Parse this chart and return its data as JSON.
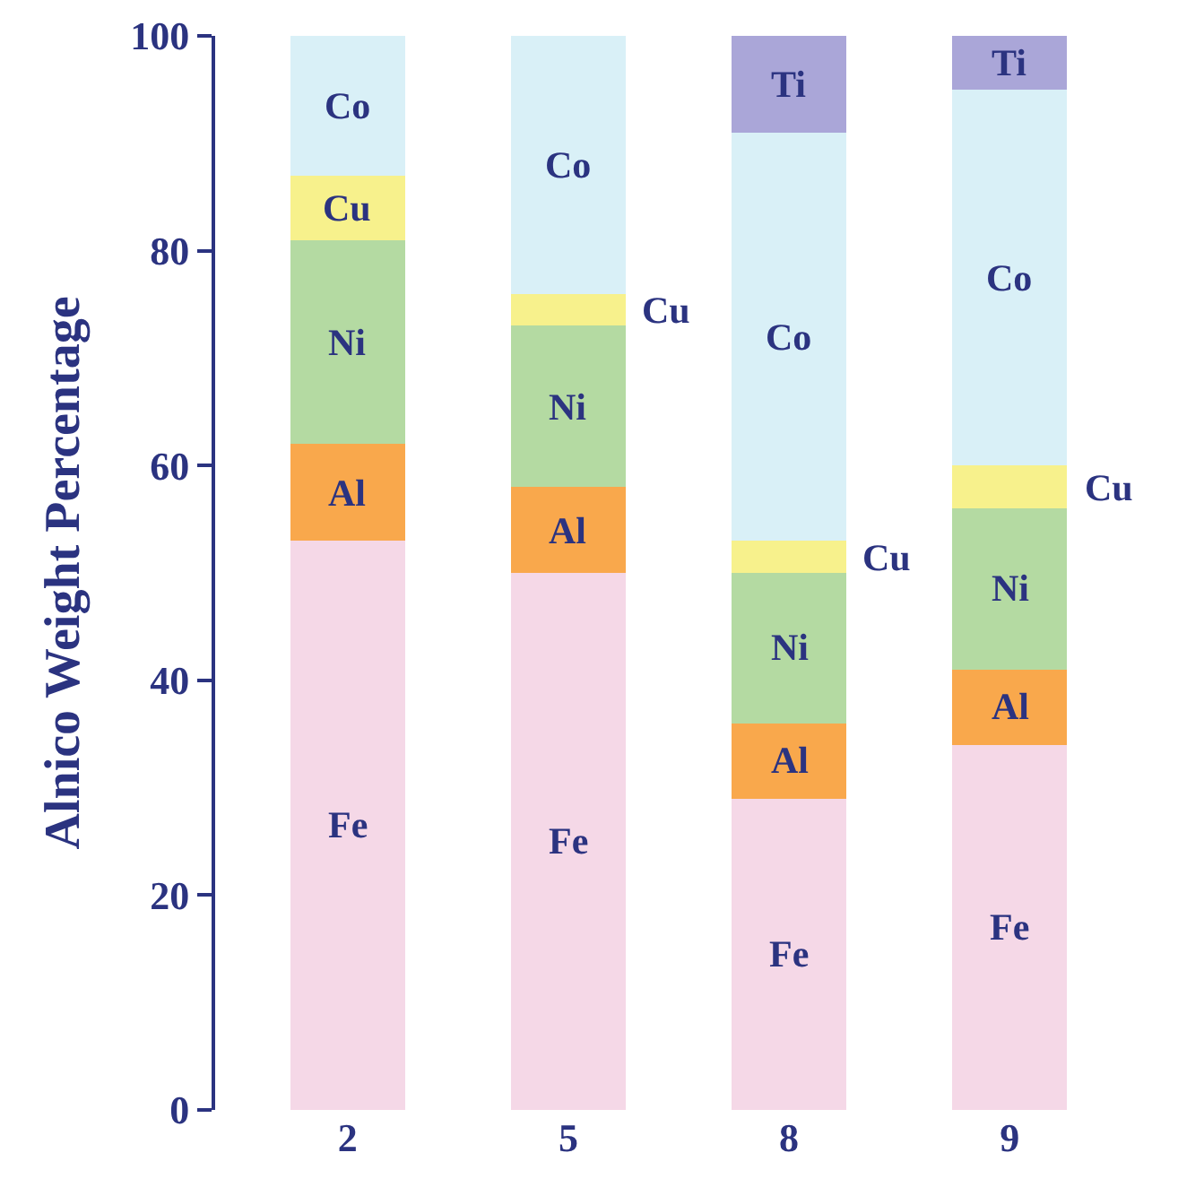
{
  "chart_data": {
    "type": "bar",
    "stacked": true,
    "ylabel": "Alnico Weight Percentage",
    "categories": [
      "2",
      "5",
      "8",
      "9"
    ],
    "series": [
      {
        "name": "Fe",
        "color": "#f5d8e7",
        "values": [
          53,
          50,
          29,
          34
        ]
      },
      {
        "name": "Al",
        "color": "#f9a84c",
        "values": [
          9,
          8,
          7,
          7
        ]
      },
      {
        "name": "Ni",
        "color": "#b4daa2",
        "values": [
          19,
          15,
          14,
          15
        ]
      },
      {
        "name": "Cu",
        "color": "#f7f18c",
        "values": [
          6,
          3,
          3,
          4
        ]
      },
      {
        "name": "Co",
        "color": "#d9f0f7",
        "values": [
          13,
          24,
          38,
          35
        ]
      },
      {
        "name": "Ti",
        "color": "#aaa6d8",
        "values": [
          null,
          null,
          9,
          5
        ]
      }
    ],
    "ylim": [
      0,
      100
    ],
    "yticks": [
      0,
      20,
      40,
      60,
      80,
      100
    ],
    "grid": false,
    "legend": false
  }
}
